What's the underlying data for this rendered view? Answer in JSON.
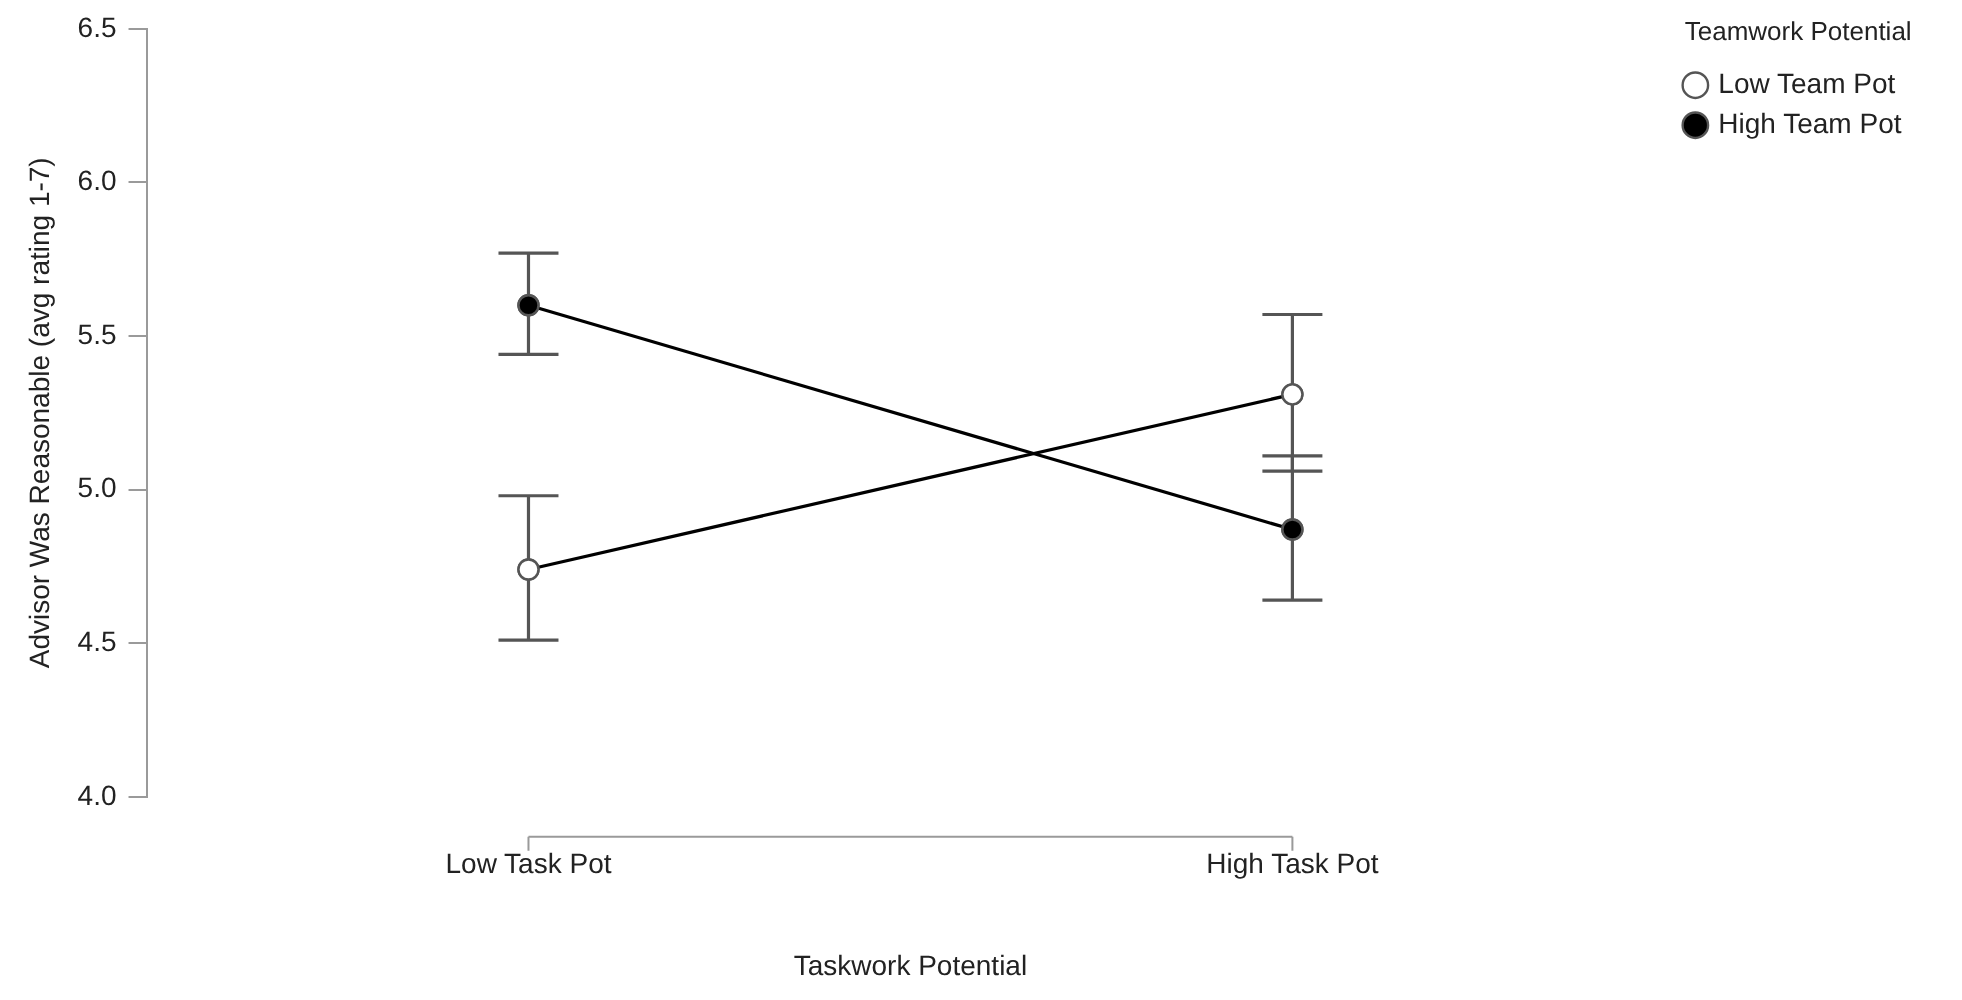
{
  "chart_data": {
    "type": "line",
    "xlabel": "Taskwork Potential",
    "ylabel": "Advisor Was Reasonable (avg rating 1-7)",
    "legend_title": "Teamwork Potential",
    "categories": [
      "Low Task Pot",
      "High Task Pot"
    ],
    "series": [
      {
        "name": "Low Team Pot",
        "color": "#000000",
        "colors": [
          "#ffffff",
          "#ffffff"
        ],
        "values": [
          4.74,
          5.31
        ],
        "errors": [
          [
            4.51,
            4.98
          ],
          [
            5.06,
            5.57
          ]
        ]
      },
      {
        "name": "High Team Pot",
        "color": "#000000",
        "colors": [
          "#000000",
          "#000000"
        ],
        "values": [
          5.6,
          4.87
        ],
        "errors": [
          [
            5.44,
            5.77
          ],
          [
            4.64,
            5.11
          ]
        ]
      }
    ],
    "ylim": [
      4.0,
      6.5
    ],
    "yticks": [
      {
        "value": 4.0,
        "label": "4.0"
      },
      {
        "value": 4.5,
        "label": "4.5"
      },
      {
        "value": 5.0,
        "label": "5.0"
      },
      {
        "value": 5.5,
        "label": "5.5"
      },
      {
        "value": 6.0,
        "label": "6.0"
      },
      {
        "value": 6.5,
        "label": "6.5"
      }
    ],
    "legend": "top right",
    "marker": "circle",
    "line_style": "solid",
    "grid": false
  }
}
